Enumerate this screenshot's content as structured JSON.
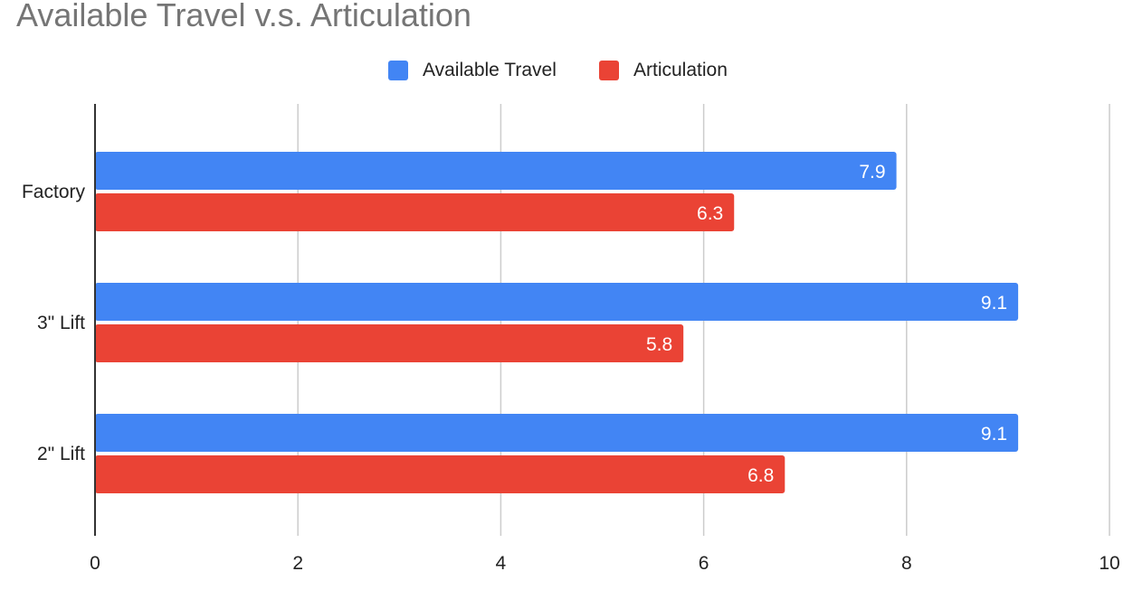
{
  "chart_data": {
    "type": "bar",
    "orientation": "horizontal",
    "title": "Available Travel v.s. Articulation",
    "categories": [
      "Factory",
      "3\" Lift",
      "2\" Lift"
    ],
    "series": [
      {
        "name": "Available Travel",
        "color": "#4285f4",
        "values": [
          7.9,
          9.1,
          9.1
        ]
      },
      {
        "name": "Articulation",
        "color": "#ea4335",
        "values": [
          6.3,
          5.8,
          6.8
        ]
      }
    ],
    "xlim": [
      0,
      10
    ],
    "xticks": [
      "0",
      "2",
      "4",
      "6",
      "8",
      "10"
    ],
    "grid": true,
    "legend": "top-center",
    "data_labels": [
      "7.9",
      "6.3",
      "9.1",
      "5.8",
      "9.1",
      "6.8"
    ]
  }
}
